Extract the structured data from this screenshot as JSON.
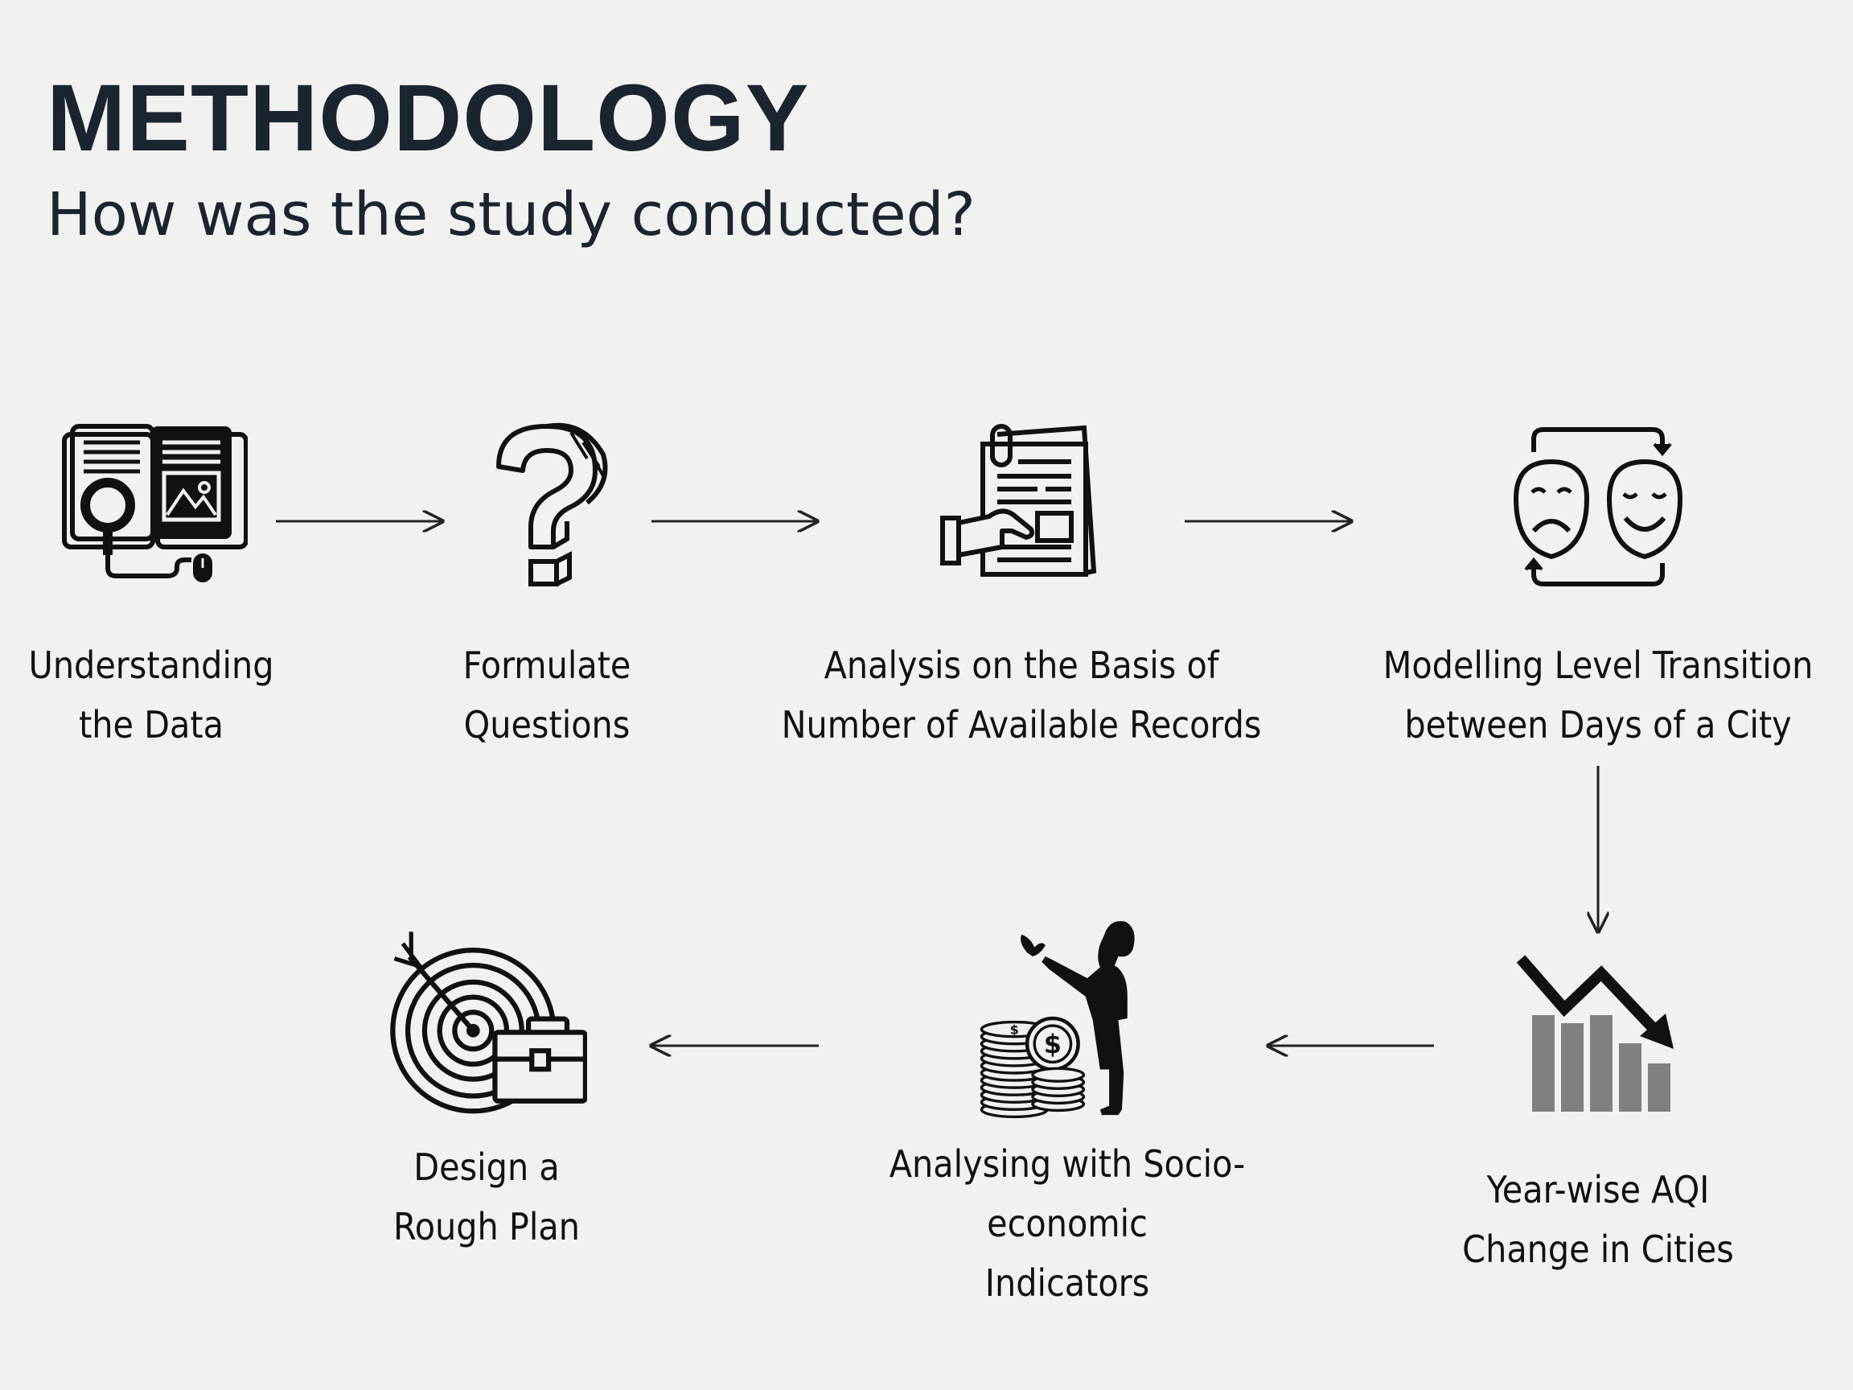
{
  "header": {
    "title": "METHODOLOGY",
    "subtitle": "How was the study conducted?"
  },
  "steps": [
    {
      "line1": "Understanding",
      "line2": "the Data",
      "icon": "book-magnifier-icon"
    },
    {
      "line1": "Formulate",
      "line2": "Questions",
      "icon": "question-mark-icon"
    },
    {
      "line1": "Analysis on the Basis of",
      "line2": "Number of Available Records",
      "icon": "document-hand-icon"
    },
    {
      "line1": "Modelling Level Transition",
      "line2": "between Days of a City",
      "icon": "mood-transition-icon"
    },
    {
      "line1": "Year-wise AQI",
      "line2": "Change in Cities",
      "icon": "declining-chart-icon"
    },
    {
      "line1": "Analysing with Socio-economic",
      "line2": "Indicators",
      "icon": "child-coins-icon"
    },
    {
      "line1": "Design a",
      "line2": "Rough Plan",
      "icon": "target-briefcase-icon"
    }
  ]
}
